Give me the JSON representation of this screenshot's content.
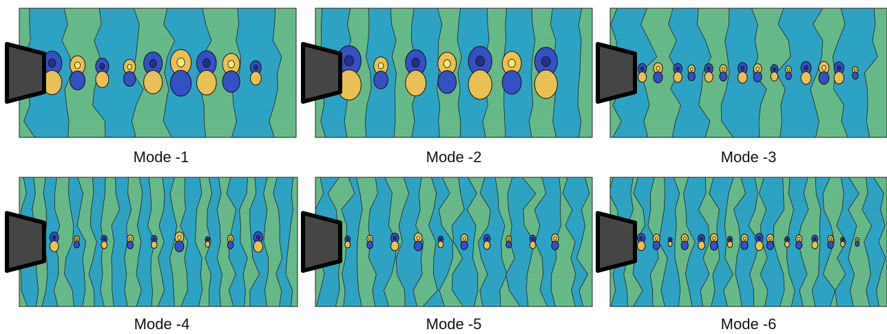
{
  "panels": [
    {
      "label": "Mode -1"
    },
    {
      "label": "Mode -2"
    },
    {
      "label": "Mode -3"
    },
    {
      "label": "Mode -4"
    },
    {
      "label": "Mode -5"
    },
    {
      "label": "Mode -6"
    }
  ]
}
